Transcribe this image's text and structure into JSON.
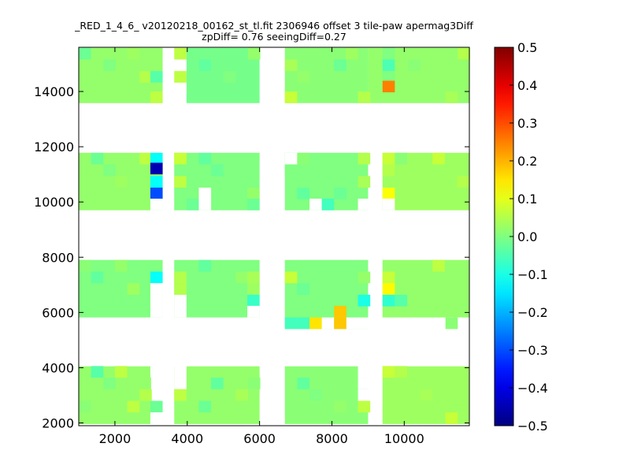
{
  "chart_data": {
    "type": "heatmap",
    "title": "_RED_1_4_6_ v20120218_00162_st_tl.fit 2306946 offset 3 tile-paw apermag3Diff",
    "subtitle": "zpDiff= 0.76 seeingDiff=0.27",
    "xlim": [
      1000,
      11800
    ],
    "ylim": [
      1900,
      15600
    ],
    "x_ticks": [
      2000,
      4000,
      6000,
      8000,
      10000
    ],
    "y_ticks": [
      2000,
      4000,
      6000,
      8000,
      10000,
      12000,
      14000
    ],
    "x_tick_labels": [
      "2000",
      "4000",
      "6000",
      "8000",
      "10000"
    ],
    "y_tick_labels": [
      "2000",
      "4000",
      "6000",
      "8000",
      "10000",
      "12000",
      "14000"
    ],
    "colorbar": {
      "min": -0.5,
      "max": 0.5,
      "colormap": "jet",
      "ticks": [
        0.5,
        0.4,
        0.3,
        0.2,
        0.1,
        0.0,
        -0.1,
        -0.2,
        -0.3,
        -0.4,
        -0.5
      ],
      "tick_labels": [
        "0.5",
        "0.4",
        "0.3",
        "0.2",
        "0.1",
        "0.0",
        "−0.1",
        "−0.2",
        "−0.3",
        "−0.4",
        "−0.5"
      ]
    },
    "cell_size": [
      340,
      420
    ],
    "base_value": 0.0,
    "blocks": [
      {
        "x": [
          1000,
          3320
        ],
        "y": [
          13580,
          15580
        ],
        "value": 0.02
      },
      {
        "x": [
          3640,
          3980
        ],
        "y": [
          15160,
          15580
        ],
        "value": 0.06
      },
      {
        "x": [
          3640,
          3980
        ],
        "y": [
          14320,
          14740
        ],
        "value": 0.06
      },
      {
        "x": [
          3980,
          6000
        ],
        "y": [
          13580,
          15580
        ],
        "value": -0.01
      },
      {
        "x": [
          6700,
          9000
        ],
        "y": [
          13580,
          15580
        ],
        "value": 0.01
      },
      {
        "x": [
          9000,
          11800
        ],
        "y": [
          13580,
          15580
        ],
        "value": 0.02
      },
      {
        "x": [
          1000,
          3320
        ],
        "y": [
          9700,
          11780
        ],
        "value": 0.02
      },
      {
        "x": [
          3640,
          6000
        ],
        "y": [
          9700,
          11780
        ],
        "value": 0.0
      },
      {
        "x": [
          6700,
          9000
        ],
        "y": [
          9700,
          11780
        ],
        "value": 0.0
      },
      {
        "x": [
          9400,
          11800
        ],
        "y": [
          9700,
          11780
        ],
        "value": 0.03
      },
      {
        "x": [
          1000,
          3320
        ],
        "y": [
          5820,
          7900
        ],
        "value": 0.0
      },
      {
        "x": [
          3640,
          6000
        ],
        "y": [
          5820,
          7900
        ],
        "value": 0.0
      },
      {
        "x": [
          6700,
          9000
        ],
        "y": [
          5400,
          7900
        ],
        "value": 0.0
      },
      {
        "x": [
          9400,
          11800
        ],
        "y": [
          5820,
          7900
        ],
        "value": 0.02
      },
      {
        "x": [
          1000,
          3000
        ],
        "y": [
          1960,
          4050
        ],
        "value": 0.02
      },
      {
        "x": [
          3640,
          6000
        ],
        "y": [
          1960,
          4050
        ],
        "value": 0.02
      },
      {
        "x": [
          6700,
          9000
        ],
        "y": [
          1960,
          4050
        ],
        "value": 0.01
      },
      {
        "x": [
          9400,
          11800
        ],
        "y": [
          1960,
          4050
        ],
        "value": 0.03
      }
    ],
    "cells": [
      {
        "x": 1000,
        "y": 15160,
        "value": -0.02
      },
      {
        "x": 1680,
        "y": 14740,
        "value": 0.0
      },
      {
        "x": 2340,
        "y": 15160,
        "value": 0.03
      },
      {
        "x": 2680,
        "y": 14320,
        "value": 0.05
      },
      {
        "x": 2980,
        "y": 14320,
        "value": -0.04
      },
      {
        "x": 2980,
        "y": 13580,
        "value": 0.06
      },
      {
        "x": 4320,
        "y": 14740,
        "value": -0.03
      },
      {
        "x": 5000,
        "y": 14320,
        "value": 0.0
      },
      {
        "x": 5680,
        "y": 15160,
        "value": 0.02
      },
      {
        "x": 6700,
        "y": 14740,
        "value": 0.04
      },
      {
        "x": 7040,
        "y": 14320,
        "value": 0.02
      },
      {
        "x": 6700,
        "y": 13580,
        "value": 0.07
      },
      {
        "x": 8060,
        "y": 14740,
        "value": -0.02
      },
      {
        "x": 8380,
        "y": 15160,
        "value": 0.03
      },
      {
        "x": 8720,
        "y": 13580,
        "value": 0.05
      },
      {
        "x": 9400,
        "y": 15160,
        "value": 0.0
      },
      {
        "x": 9400,
        "y": 14740,
        "value": -0.05
      },
      {
        "x": 9400,
        "y": 14320,
        "value": 0.0
      },
      {
        "x": 9400,
        "y": 13970,
        "value": 0.25
      },
      {
        "x": 10100,
        "y": 14740,
        "value": 0.01
      },
      {
        "x": 11140,
        "y": 13580,
        "value": 0.04
      },
      {
        "x": 11480,
        "y": 15160,
        "value": 0.05
      },
      {
        "x": 1340,
        "y": 11360,
        "value": -0.02
      },
      {
        "x": 1680,
        "y": 10940,
        "value": 0.0
      },
      {
        "x": 2000,
        "y": 10520,
        "value": 0.03
      },
      {
        "x": 2680,
        "y": 11360,
        "value": 0.06
      },
      {
        "x": 2980,
        "y": 11360,
        "value": -0.12
      },
      {
        "x": 2980,
        "y": 11000,
        "value": -0.45
      },
      {
        "x": 2980,
        "y": 10520,
        "value": -0.12
      },
      {
        "x": 2980,
        "y": 10100,
        "value": -0.3
      },
      {
        "x": 2980,
        "y": 9700,
        "value": null
      },
      {
        "x": 3640,
        "y": 11360,
        "value": 0.07
      },
      {
        "x": 3640,
        "y": 10520,
        "value": 0.06
      },
      {
        "x": 3980,
        "y": 9700,
        "value": -0.02
      },
      {
        "x": 4320,
        "y": 11360,
        "value": -0.03
      },
      {
        "x": 4320,
        "y": 10100,
        "value": null
      },
      {
        "x": 4320,
        "y": 9700,
        "value": null
      },
      {
        "x": 4660,
        "y": 10940,
        "value": -0.02
      },
      {
        "x": 5340,
        "y": 10520,
        "value": 0.0
      },
      {
        "x": 5660,
        "y": 10100,
        "value": 0.02
      },
      {
        "x": 5660,
        "y": 9700,
        "value": -0.02
      },
      {
        "x": 6700,
        "y": 11360,
        "value": null
      },
      {
        "x": 6700,
        "y": 10940,
        "value": 0.0
      },
      {
        "x": 7040,
        "y": 11360,
        "value": 0.01
      },
      {
        "x": 7040,
        "y": 10100,
        "value": -0.03
      },
      {
        "x": 7380,
        "y": 10520,
        "value": 0.0
      },
      {
        "x": 7380,
        "y": 9700,
        "value": null
      },
      {
        "x": 7720,
        "y": 9700,
        "value": -0.06
      },
      {
        "x": 8060,
        "y": 10100,
        "value": -0.02
      },
      {
        "x": 8720,
        "y": 11360,
        "value": 0.05
      },
      {
        "x": 8720,
        "y": 10520,
        "value": 0.04
      },
      {
        "x": 8720,
        "y": 9700,
        "value": null
      },
      {
        "x": 9400,
        "y": 11360,
        "value": 0.07
      },
      {
        "x": 9400,
        "y": 10940,
        "value": 0.05
      },
      {
        "x": 9400,
        "y": 10100,
        "value": 0.12
      },
      {
        "x": 9400,
        "y": 9700,
        "value": null
      },
      {
        "x": 9740,
        "y": 11360,
        "value": 0.01
      },
      {
        "x": 10440,
        "y": 10940,
        "value": 0.03
      },
      {
        "x": 10780,
        "y": 11360,
        "value": 0.07
      },
      {
        "x": 11460,
        "y": 10520,
        "value": 0.05
      },
      {
        "x": 1000,
        "y": 7480,
        "value": 0.01
      },
      {
        "x": 1340,
        "y": 7060,
        "value": -0.03
      },
      {
        "x": 2000,
        "y": 7480,
        "value": 0.02
      },
      {
        "x": 2340,
        "y": 6640,
        "value": 0.03
      },
      {
        "x": 2980,
        "y": 7060,
        "value": -0.12
      },
      {
        "x": 2980,
        "y": 6640,
        "value": null
      },
      {
        "x": 2980,
        "y": 6220,
        "value": null
      },
      {
        "x": 2980,
        "y": 5820,
        "value": null
      },
      {
        "x": 3640,
        "y": 7060,
        "value": 0.05
      },
      {
        "x": 3640,
        "y": 6640,
        "value": 0.05
      },
      {
        "x": 3640,
        "y": 6220,
        "value": null
      },
      {
        "x": 3640,
        "y": 5820,
        "value": null
      },
      {
        "x": 4320,
        "y": 7480,
        "value": -0.03
      },
      {
        "x": 4660,
        "y": 6640,
        "value": 0.0
      },
      {
        "x": 5340,
        "y": 7060,
        "value": 0.02
      },
      {
        "x": 5660,
        "y": 6640,
        "value": 0.03
      },
      {
        "x": 5660,
        "y": 7060,
        "value": 0.04
      },
      {
        "x": 5660,
        "y": 6220,
        "value": -0.07
      },
      {
        "x": 5660,
        "y": 5820,
        "value": null
      },
      {
        "x": 6700,
        "y": 7060,
        "value": 0.07
      },
      {
        "x": 6700,
        "y": 5400,
        "value": -0.06
      },
      {
        "x": 7040,
        "y": 5400,
        "value": -0.06
      },
      {
        "x": 7040,
        "y": 6640,
        "value": -0.02
      },
      {
        "x": 7380,
        "y": 5400,
        "value": 0.15
      },
      {
        "x": 7720,
        "y": 5400,
        "value": null
      },
      {
        "x": 8060,
        "y": 5820,
        "value": 0.18
      },
      {
        "x": 8060,
        "y": 5400,
        "value": 0.18
      },
      {
        "x": 8400,
        "y": 5400,
        "value": null
      },
      {
        "x": 8720,
        "y": 5400,
        "value": null
      },
      {
        "x": 8720,
        "y": 6220,
        "value": -0.1
      },
      {
        "x": 8720,
        "y": 7060,
        "value": 0.02
      },
      {
        "x": 9400,
        "y": 7060,
        "value": 0.07
      },
      {
        "x": 9400,
        "y": 6640,
        "value": 0.13
      },
      {
        "x": 9400,
        "y": 6220,
        "value": -0.08
      },
      {
        "x": 9740,
        "y": 6220,
        "value": -0.04
      },
      {
        "x": 10780,
        "y": 7480,
        "value": 0.06
      },
      {
        "x": 11140,
        "y": 5400,
        "value": 0.01
      },
      {
        "x": 1340,
        "y": 3640,
        "value": -0.04
      },
      {
        "x": 1000,
        "y": 2380,
        "value": 0.01
      },
      {
        "x": 1680,
        "y": 3220,
        "value": 0.0
      },
      {
        "x": 2000,
        "y": 3640,
        "value": 0.06
      },
      {
        "x": 2340,
        "y": 2380,
        "value": 0.06
      },
      {
        "x": 2680,
        "y": 2800,
        "value": 0.05
      },
      {
        "x": 2980,
        "y": 3640,
        "value": null
      },
      {
        "x": 2980,
        "y": 2380,
        "value": -0.02
      },
      {
        "x": 2980,
        "y": 1960,
        "value": null
      },
      {
        "x": 3640,
        "y": 3640,
        "value": null
      },
      {
        "x": 3640,
        "y": 3220,
        "value": null
      },
      {
        "x": 3640,
        "y": 2800,
        "value": 0.06
      },
      {
        "x": 4320,
        "y": 2380,
        "value": -0.02
      },
      {
        "x": 4660,
        "y": 3220,
        "value": -0.03
      },
      {
        "x": 5340,
        "y": 2800,
        "value": 0.04
      },
      {
        "x": 5680,
        "y": 3220,
        "value": 0.01
      },
      {
        "x": 7040,
        "y": 3220,
        "value": -0.03
      },
      {
        "x": 7380,
        "y": 2800,
        "value": 0.0
      },
      {
        "x": 8060,
        "y": 2380,
        "value": 0.02
      },
      {
        "x": 8720,
        "y": 3640,
        "value": null
      },
      {
        "x": 8720,
        "y": 3220,
        "value": null
      },
      {
        "x": 8720,
        "y": 2800,
        "value": null
      },
      {
        "x": 8720,
        "y": 2380,
        "value": 0.06
      },
      {
        "x": 9400,
        "y": 3640,
        "value": 0.07
      },
      {
        "x": 9740,
        "y": 3640,
        "value": 0.05
      },
      {
        "x": 10440,
        "y": 2800,
        "value": 0.04
      },
      {
        "x": 11140,
        "y": 1960,
        "value": 0.07
      }
    ]
  }
}
